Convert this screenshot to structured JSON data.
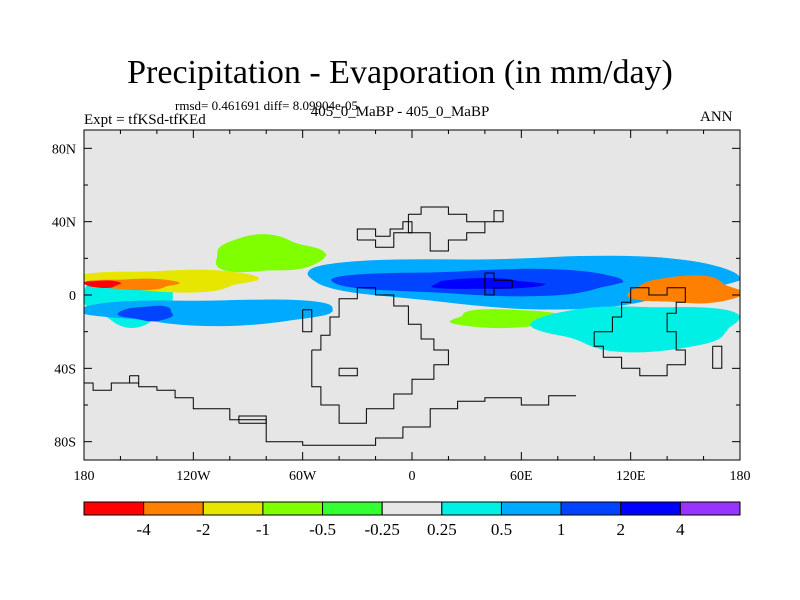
{
  "chart_data": {
    "type": "contour_map",
    "title": "Precipitation - Evaporation (in mm/day)",
    "stats_text": "rmsd= 0.461691 diff= 8.09904e-05",
    "left_label": "Expt = tfKSd-tfKEd",
    "center_label": "405_0_MaBP - 405_0_MaBP",
    "right_label": "ANN",
    "x_axis": {
      "range": [
        -180,
        180
      ],
      "ticks": [
        -180,
        -120,
        -60,
        0,
        60,
        120,
        180
      ],
      "tick_labels": [
        "180",
        "120W",
        "60W",
        "0",
        "60E",
        "120E",
        "180"
      ]
    },
    "y_axis": {
      "range": [
        -90,
        90
      ],
      "ticks": [
        80,
        40,
        0,
        -40,
        -80
      ],
      "tick_labels": [
        "80N",
        "40N",
        "0",
        "40S",
        "80S"
      ]
    },
    "colorbar": {
      "levels": [
        "-4",
        "-2",
        "-1",
        "-0.5",
        "-0.25",
        "0.25",
        "0.5",
        "1",
        "2",
        "4"
      ],
      "colors": [
        "#ff0000",
        "#ff8000",
        "#e6e600",
        "#80ff00",
        "#33ff33",
        "#e6e6e6",
        "#00f0e6",
        "#00aaff",
        "#0044ff",
        "#0000ff",
        "#9933ff"
      ]
    },
    "regions": [
      {
        "name": "pacific-west-wet-band",
        "lon": [
          -180,
          -130
        ],
        "lat": [
          -16,
          12
        ],
        "level": "0.25"
      },
      {
        "name": "itcz-west-pacific-dry-anomaly",
        "lon": [
          -180,
          -85
        ],
        "lat": [
          2,
          14
        ],
        "level": "-1"
      },
      {
        "name": "itcz-west-pacific-deep-dry",
        "lon": [
          -178,
          -128
        ],
        "lat": [
          3,
          9
        ],
        "level": "-2"
      },
      {
        "name": "itcz-far-west-max",
        "lon": [
          -180,
          -160
        ],
        "lat": [
          4,
          8
        ],
        "level": "-4"
      },
      {
        "name": "itcz-east-pacific-dry",
        "lon": [
          -110,
          -50
        ],
        "lat": [
          12,
          32
        ],
        "level": "-0.5"
      },
      {
        "name": "south-pacific-wet",
        "lon": [
          -180,
          -40
        ],
        "lat": [
          -16,
          -2
        ],
        "level": "0.5"
      },
      {
        "name": "south-pacific-wet-core",
        "lon": [
          -160,
          -130
        ],
        "lat": [
          -14,
          -6
        ],
        "level": "1"
      },
      {
        "name": "atlantic-wet-band",
        "lon": [
          -55,
          180
        ],
        "lat": [
          -6,
          22
        ],
        "level": "0.5"
      },
      {
        "name": "atlantic-wet-core",
        "lon": [
          -40,
          120
        ],
        "lat": [
          0,
          14
        ],
        "level": "1"
      },
      {
        "name": "atlantic-deep-wet",
        "lon": [
          10,
          70
        ],
        "lat": [
          3,
          9
        ],
        "level": "2"
      },
      {
        "name": "indian-dry",
        "lon": [
          20,
          90
        ],
        "lat": [
          -18,
          -8
        ],
        "level": "-0.5"
      },
      {
        "name": "indonesia-dry",
        "lon": [
          120,
          180
        ],
        "lat": [
          -5,
          10
        ],
        "level": "-2"
      },
      {
        "name": "south-indian-wet",
        "lon": [
          70,
          180
        ],
        "lat": [
          -30,
          -5
        ],
        "level": "0.25"
      }
    ],
    "coastline": "paleogeographic continental outlines (black lines)"
  }
}
